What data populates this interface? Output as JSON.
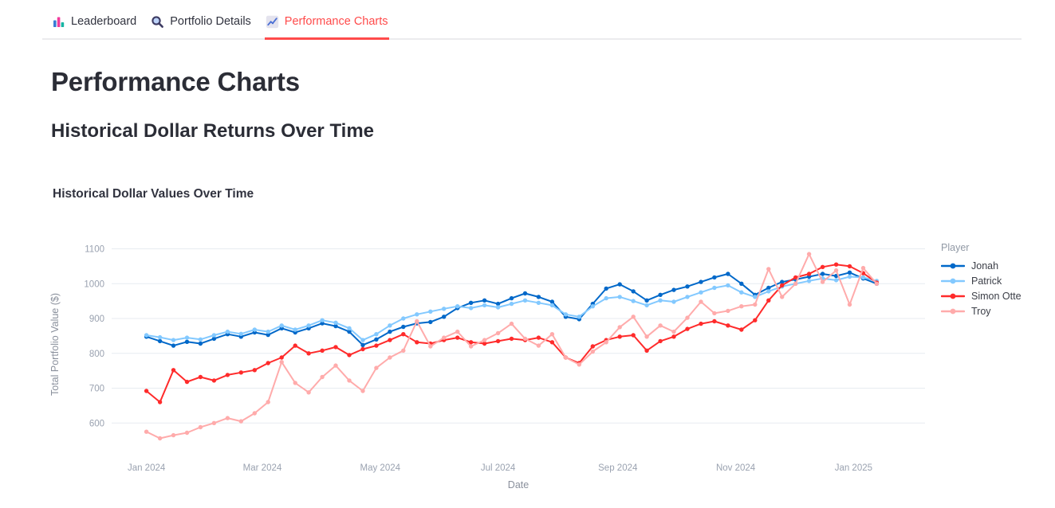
{
  "tabs": [
    {
      "label": "Leaderboard",
      "icon": "bar-chart-icon",
      "active": false
    },
    {
      "label": "Portfolio Details",
      "icon": "magnifier-icon",
      "active": false
    },
    {
      "label": "Performance Charts",
      "icon": "trend-chart-icon",
      "active": true
    }
  ],
  "page": {
    "title": "Performance Charts",
    "subtitle": "Historical Dollar Returns Over Time"
  },
  "colors": {
    "accent_red": "#FF4B4B",
    "grid": "#e7ebf1",
    "tick_label": "#9aa2b0",
    "axis_title": "#8a909c",
    "heading": "#2b2d36"
  },
  "chart_data": {
    "type": "line",
    "title": "Historical Dollar Values Over Time",
    "xlabel": "Date",
    "ylabel": "Total Portfolio Value ($)",
    "legend_title": "Player",
    "legend_position": "right",
    "grid": "horizontal-only",
    "markers": true,
    "y_ticks": [
      600,
      700,
      800,
      900,
      1000,
      1100
    ],
    "y_domain": [
      516,
      1140
    ],
    "x_domain": [
      "2023-12-14",
      "2025-02-07"
    ],
    "x_ticks": [
      {
        "date": "2024-01-01",
        "label": "Jan 2024"
      },
      {
        "date": "2024-03-01",
        "label": "Mar 2024"
      },
      {
        "date": "2024-05-01",
        "label": "May 2024"
      },
      {
        "date": "2024-07-01",
        "label": "Jul 2024"
      },
      {
        "date": "2024-09-01",
        "label": "Sep 2024"
      },
      {
        "date": "2024-11-01",
        "label": "Nov 2024"
      },
      {
        "date": "2025-01-01",
        "label": "Jan 2025"
      }
    ],
    "x": [
      "2024-01-01",
      "2024-01-08",
      "2024-01-15",
      "2024-01-22",
      "2024-01-29",
      "2024-02-05",
      "2024-02-12",
      "2024-02-19",
      "2024-02-26",
      "2024-03-04",
      "2024-03-11",
      "2024-03-18",
      "2024-03-25",
      "2024-04-01",
      "2024-04-08",
      "2024-04-15",
      "2024-04-22",
      "2024-04-29",
      "2024-05-06",
      "2024-05-13",
      "2024-05-20",
      "2024-05-27",
      "2024-06-03",
      "2024-06-10",
      "2024-06-17",
      "2024-06-24",
      "2024-07-01",
      "2024-07-08",
      "2024-07-15",
      "2024-07-22",
      "2024-07-29",
      "2024-08-05",
      "2024-08-12",
      "2024-08-19",
      "2024-08-26",
      "2024-09-02",
      "2024-09-09",
      "2024-09-16",
      "2024-09-23",
      "2024-09-30",
      "2024-10-07",
      "2024-10-14",
      "2024-10-21",
      "2024-10-28",
      "2024-11-04",
      "2024-11-11",
      "2024-11-18",
      "2024-11-25",
      "2024-12-02",
      "2024-12-09",
      "2024-12-16",
      "2024-12-23",
      "2024-12-30",
      "2025-01-06",
      "2025-01-13"
    ],
    "series": [
      {
        "name": "Jonah",
        "color": "#0068C9",
        "values": [
          848,
          835,
          822,
          833,
          828,
          842,
          855,
          848,
          860,
          853,
          872,
          860,
          872,
          886,
          878,
          862,
          824,
          840,
          862,
          876,
          886,
          890,
          905,
          930,
          945,
          952,
          942,
          958,
          972,
          962,
          948,
          905,
          898,
          942,
          986,
          998,
          978,
          952,
          968,
          982,
          992,
          1005,
          1018,
          1028,
          1000,
          968,
          988,
          1005,
          1012,
          1020,
          1028,
          1022,
          1032,
          1015,
          1000
        ]
      },
      {
        "name": "Patrick",
        "color": "#83C9FF",
        "values": [
          852,
          846,
          838,
          845,
          840,
          852,
          862,
          856,
          868,
          862,
          880,
          868,
          880,
          895,
          888,
          872,
          838,
          855,
          880,
          900,
          912,
          920,
          928,
          935,
          930,
          938,
          932,
          942,
          952,
          945,
          938,
          912,
          905,
          935,
          958,
          962,
          950,
          938,
          952,
          948,
          962,
          975,
          988,
          995,
          975,
          962,
          978,
          992,
          1000,
          1008,
          1015,
          1010,
          1020,
          1018,
          1008
        ]
      },
      {
        "name": "Simon Otte",
        "color": "#FF2B2B",
        "values": [
          692,
          660,
          752,
          718,
          732,
          722,
          738,
          745,
          752,
          772,
          788,
          822,
          800,
          808,
          818,
          795,
          812,
          822,
          838,
          855,
          832,
          828,
          838,
          845,
          832,
          828,
          835,
          842,
          838,
          845,
          832,
          788,
          772,
          820,
          838,
          848,
          852,
          808,
          835,
          848,
          870,
          885,
          892,
          880,
          868,
          895,
          952,
          995,
          1018,
          1028,
          1048,
          1055,
          1050,
          1030,
          1003
        ]
      },
      {
        "name": "Troy",
        "color": "#FFABAB",
        "values": [
          575,
          556,
          565,
          572,
          588,
          600,
          614,
          605,
          628,
          660,
          775,
          715,
          688,
          732,
          765,
          722,
          692,
          758,
          788,
          808,
          892,
          820,
          845,
          862,
          820,
          838,
          858,
          885,
          842,
          822,
          855,
          788,
          768,
          805,
          832,
          875,
          905,
          848,
          880,
          862,
          902,
          948,
          915,
          922,
          935,
          940,
          1042,
          962,
          1000,
          1085,
          1005,
          1038,
          940,
          1045,
          1000
        ]
      }
    ]
  }
}
